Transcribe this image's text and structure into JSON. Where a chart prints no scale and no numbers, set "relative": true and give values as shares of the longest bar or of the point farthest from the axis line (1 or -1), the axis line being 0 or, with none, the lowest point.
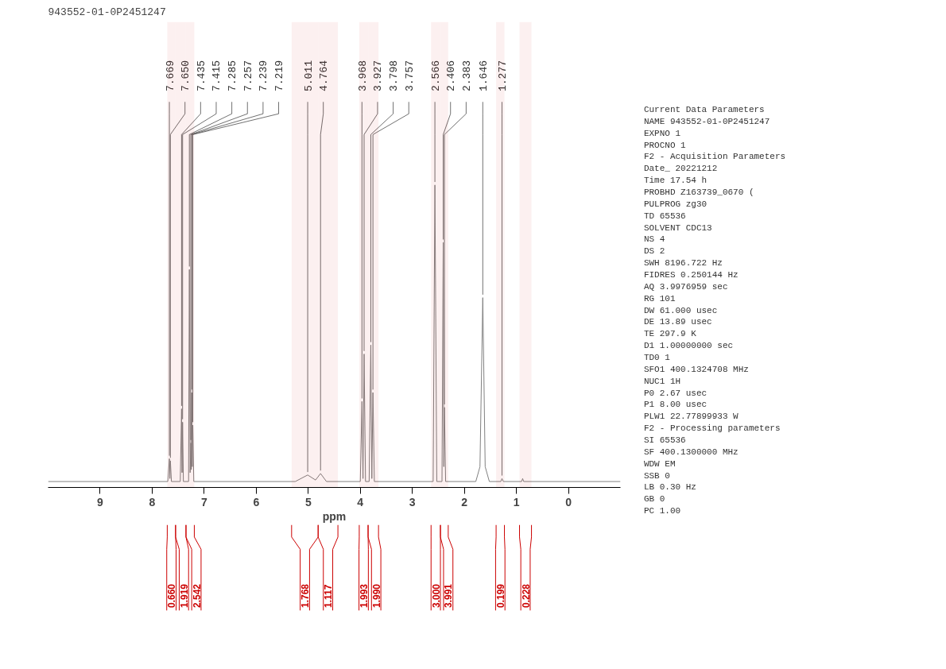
{
  "chart_data": {
    "type": "line",
    "title": "943552-01-0P2451247",
    "xlabel": "ppm",
    "relative": true,
    "grid": false,
    "marker": "none",
    "line_style": "solid",
    "xlim": [
      10.0,
      -1.0
    ],
    "xticks": [
      9,
      8,
      7,
      6,
      5,
      4,
      3,
      2,
      1,
      0
    ],
    "series": [
      {
        "color": "#808080",
        "x": [
          10.0,
          7.7,
          7.669,
          7.66,
          7.65,
          7.63,
          7.46,
          7.435,
          7.425,
          7.415,
          7.4,
          7.3,
          7.285,
          7.27,
          7.257,
          7.248,
          7.239,
          7.229,
          7.219,
          7.2,
          5.25,
          5.011,
          4.86,
          4.764,
          4.65,
          4.0,
          3.968,
          3.948,
          3.927,
          3.9,
          3.83,
          3.798,
          3.778,
          3.757,
          3.73,
          2.6,
          2.566,
          2.53,
          2.43,
          2.406,
          2.395,
          2.383,
          2.36,
          1.78,
          1.7,
          1.646,
          1.6,
          1.52,
          1.3,
          1.277,
          1.25,
          0.9,
          0.88,
          0.86,
          -1.0
        ],
        "values": [
          0,
          0,
          0.077,
          0.01,
          0.07,
          0,
          0,
          0.245,
          0.03,
          0.2,
          0,
          0,
          0.715,
          0.03,
          0.13,
          0.04,
          0.3,
          0.05,
          0.19,
          0,
          0,
          0.022,
          0.005,
          0.027,
          0,
          0,
          0.27,
          0.01,
          0.43,
          0,
          0,
          0.46,
          0.01,
          0.3,
          0,
          0,
          1.0,
          0,
          0,
          0.806,
          0.05,
          0.25,
          0,
          0,
          0.05,
          0.62,
          0.05,
          0,
          0,
          0.01,
          0,
          0,
          0.01,
          0,
          0
        ]
      }
    ],
    "annotations": [
      {
        "text": "7.669",
        "x": 7.669,
        "y": 0.077
      },
      {
        "text": "7.650",
        "x": 7.65,
        "y": 0.07
      },
      {
        "text": "7.435",
        "x": 7.435,
        "y": 0.245
      },
      {
        "text": "7.415",
        "x": 7.415,
        "y": 0.2
      },
      {
        "text": "7.285",
        "x": 7.285,
        "y": 0.715
      },
      {
        "text": "7.257",
        "x": 7.257,
        "y": 0.13
      },
      {
        "text": "7.239",
        "x": 7.239,
        "y": 0.3
      },
      {
        "text": "7.219",
        "x": 7.219,
        "y": 0.19
      },
      {
        "text": "5.011",
        "x": 5.011,
        "y": 0.022
      },
      {
        "text": "4.764",
        "x": 4.764,
        "y": 0.027
      },
      {
        "text": "3.968",
        "x": 3.968,
        "y": 0.27
      },
      {
        "text": "3.927",
        "x": 3.927,
        "y": 0.43
      },
      {
        "text": "3.798",
        "x": 3.798,
        "y": 0.46
      },
      {
        "text": "3.757",
        "x": 3.757,
        "y": 0.3
      },
      {
        "text": "2.566",
        "x": 2.566,
        "y": 1.0
      },
      {
        "text": "2.406",
        "x": 2.406,
        "y": 0.806
      },
      {
        "text": "2.383",
        "x": 2.383,
        "y": 0.25
      },
      {
        "text": "1.646",
        "x": 1.646,
        "y": 0.62
      },
      {
        "text": "1.277",
        "x": 1.277,
        "y": 0.01
      },
      "Current Data Parameters",
      "NAME      943552-01-0P2451247",
      "EXPNO                     1",
      "PROCNO                    1",
      "F2 - Acquisition Parameters",
      "Date_          20221212",
      "Time              17.54 h",
      "PROBHD   Z163739_0670 (",
      "PULPROG            zg30",
      "TD                65536",
      "SOLVENT           CDC13",
      "NS                    4",
      "DS                    2",
      "SWH            8196.722 Hz",
      "FIDRES         0.250144 Hz",
      "AQ            3.9976959 sec",
      "RG                  101",
      "DW               61.000 usec",
      "DE                13.89 usec",
      "TE                297.9 K",
      "D1           1.00000000 sec",
      "TD0                   1",
      "SFO1        400.1324708 MHz",
      "NUC1                 1H",
      "P0                 2.67 usec",
      "P1                 8.00 usec",
      "PLW1        22.77899933 W",
      "F2 - Processing parameters",
      "SI                65536",
      "SF          400.1300000 MHz",
      "WDW                  EM",
      "SSB                   0",
      "LB                 0.30 Hz",
      "GB                    0",
      "PC                 1.00"
    ],
    "bands": [
      {
        "axis": "x",
        "from": 7.71,
        "to": 7.55,
        "label": "0.660",
        "color": "#cc0000"
      },
      {
        "axis": "x",
        "from": 7.55,
        "to": 7.35,
        "label": "1.919",
        "color": "#cc0000"
      },
      {
        "axis": "x",
        "from": 7.35,
        "to": 7.19,
        "label": "2.542",
        "color": "#cc0000"
      },
      {
        "axis": "x",
        "from": 5.32,
        "to": 4.81,
        "label": "1.768",
        "color": "#cc0000"
      },
      {
        "axis": "x",
        "from": 4.81,
        "to": 4.43,
        "label": "1.117",
        "color": "#cc0000"
      },
      {
        "axis": "x",
        "from": 4.02,
        "to": 3.85,
        "label": "1.993",
        "color": "#cc0000"
      },
      {
        "axis": "x",
        "from": 3.85,
        "to": 3.65,
        "label": "1.990",
        "color": "#cc0000"
      },
      {
        "axis": "x",
        "from": 2.64,
        "to": 2.46,
        "label": "3.000",
        "color": "#cc0000"
      },
      {
        "axis": "x",
        "from": 2.46,
        "to": 2.31,
        "label": "3.991",
        "color": "#cc0000"
      },
      {
        "axis": "x",
        "from": 1.39,
        "to": 1.23,
        "label": "0.199",
        "color": "#cc0000"
      },
      {
        "axis": "x",
        "from": 0.94,
        "to": 0.71,
        "label": "0.228",
        "color": "#cc0000"
      }
    ]
  }
}
